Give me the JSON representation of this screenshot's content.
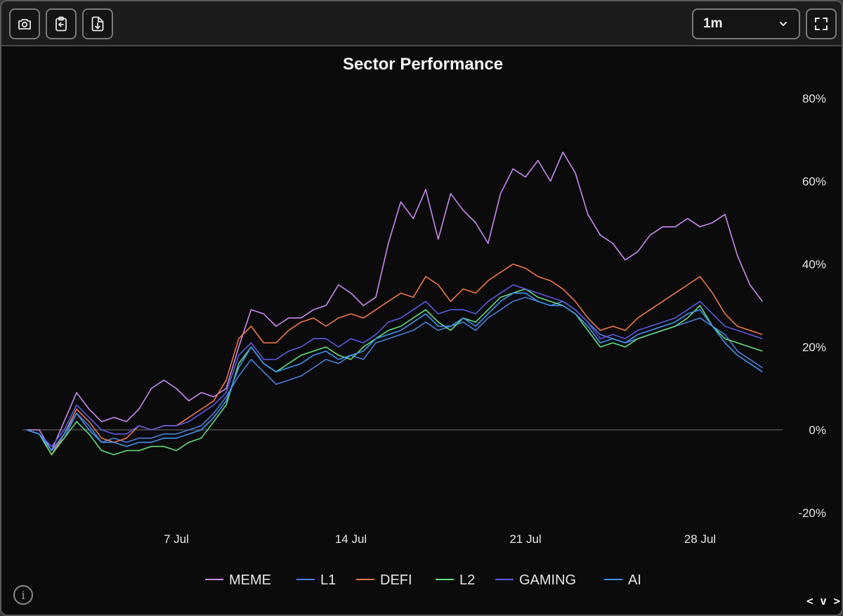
{
  "toolbar": {
    "buttons": [
      {
        "name": "screenshot",
        "icon": "camera-icon"
      },
      {
        "name": "copy",
        "icon": "clipboard-icon"
      },
      {
        "name": "download",
        "icon": "download-icon"
      }
    ],
    "range_select": {
      "value": "1m",
      "icon": "chevron-down-icon"
    },
    "fullscreen_icon": "fullscreen-icon"
  },
  "footer": {
    "info_icon": "info-icon",
    "code_toggle": "< v >"
  },
  "chart_data": {
    "type": "line",
    "title": "Sector Performance",
    "xlabel": "",
    "ylabel": "",
    "ylim": [
      -20,
      80
    ],
    "xlim": [
      1,
      31
    ],
    "y_ticks": [
      "-20%",
      "0%",
      "20%",
      "40%",
      "60%",
      "80%"
    ],
    "y_tick_values": [
      -20,
      0,
      20,
      40,
      60,
      80
    ],
    "x_ticks": [
      "7 Jul",
      "14 Jul",
      "21 Jul",
      "28 Jul"
    ],
    "x_tick_values": [
      7,
      14,
      21,
      28
    ],
    "zero_line": 0,
    "series": [
      {
        "name": "MEME",
        "color": "#c98bf0",
        "x": [
          1.0,
          1.5,
          2.0,
          2.5,
          3.0,
          3.5,
          4.0,
          4.5,
          5.0,
          5.5,
          6.0,
          6.5,
          7.0,
          7.5,
          8.0,
          8.5,
          9.0,
          9.5,
          10.0,
          10.5,
          11.0,
          11.5,
          12.0,
          12.5,
          13.0,
          13.5,
          14.0,
          14.5,
          15.0,
          15.5,
          16.0,
          16.5,
          17.0,
          17.5,
          18.0,
          18.5,
          19.0,
          19.5,
          20.0,
          20.5,
          21.0,
          21.5,
          22.0,
          22.5,
          23.0,
          23.5,
          24.0,
          24.5,
          25.0,
          25.5,
          26.0,
          26.5,
          27.0,
          27.5,
          28.0,
          28.5,
          29.0,
          29.5,
          30.0,
          30.5
        ],
        "y": [
          0,
          0,
          -5,
          2,
          9,
          5,
          2,
          3,
          2,
          5,
          10,
          12,
          10,
          7,
          9,
          8,
          10,
          20,
          29,
          28,
          25,
          27,
          27,
          29,
          30,
          35,
          33,
          30,
          32,
          45,
          55,
          51,
          58,
          46,
          57,
          53,
          50,
          45,
          57,
          63,
          61,
          65,
          60,
          67,
          62,
          52,
          47,
          45,
          41,
          43,
          47,
          49,
          49,
          51,
          49,
          50,
          52,
          42,
          35,
          31
        ]
      },
      {
        "name": "L1",
        "color": "#4a7fd9",
        "x": [
          1.0,
          1.5,
          2.0,
          2.5,
          3.0,
          3.5,
          4.0,
          4.5,
          5.0,
          5.5,
          6.0,
          6.5,
          7.0,
          7.5,
          8.0,
          8.5,
          9.0,
          9.5,
          10.0,
          10.5,
          11.0,
          11.5,
          12.0,
          12.5,
          13.0,
          13.5,
          14.0,
          14.5,
          15.0,
          15.5,
          16.0,
          16.5,
          17.0,
          17.5,
          18.0,
          18.5,
          19.0,
          19.5,
          20.0,
          20.5,
          21.0,
          21.5,
          22.0,
          22.5,
          23.0,
          23.5,
          24.0,
          24.5,
          25.0,
          25.5,
          26.0,
          26.5,
          27.0,
          27.5,
          28.0,
          28.5,
          29.0,
          29.5,
          30.0,
          30.5
        ],
        "y": [
          0,
          -1,
          -5,
          -2,
          4,
          1,
          -3,
          -2,
          -3,
          -2,
          -2,
          -1,
          -1,
          0,
          1,
          4,
          8,
          13,
          17,
          14,
          11,
          12,
          13,
          15,
          17,
          16,
          18,
          17,
          21,
          22,
          23,
          24,
          26,
          24,
          25,
          26,
          24,
          27,
          29,
          31,
          32,
          31,
          30,
          31,
          29,
          26,
          23,
          22,
          21,
          22,
          23,
          24,
          25,
          26,
          27,
          25,
          23,
          19,
          17,
          15
        ]
      },
      {
        "name": "DEFI",
        "color": "#f0764a",
        "x": [
          1.0,
          1.5,
          2.0,
          2.5,
          3.0,
          3.5,
          4.0,
          4.5,
          5.0,
          5.5,
          6.0,
          6.5,
          7.0,
          7.5,
          8.0,
          8.5,
          9.0,
          9.5,
          10.0,
          10.5,
          11.0,
          11.5,
          12.0,
          12.5,
          13.0,
          13.5,
          14.0,
          14.5,
          15.0,
          15.5,
          16.0,
          16.5,
          17.0,
          17.5,
          18.0,
          18.5,
          19.0,
          19.5,
          20.0,
          20.5,
          21.0,
          21.5,
          22.0,
          22.5,
          23.0,
          23.5,
          24.0,
          24.5,
          25.0,
          25.5,
          26.0,
          26.5,
          27.0,
          27.5,
          28.0,
          28.5,
          29.0,
          29.5,
          30.0,
          30.5
        ],
        "y": [
          0,
          -1,
          -6,
          -1,
          5,
          2,
          -2,
          -3,
          -2,
          1,
          0,
          1,
          1,
          3,
          5,
          7,
          12,
          22,
          25,
          21,
          21,
          24,
          26,
          27,
          25,
          27,
          28,
          27,
          29,
          31,
          33,
          32,
          37,
          35,
          31,
          34,
          33,
          36,
          38,
          40,
          39,
          37,
          36,
          34,
          31,
          27,
          24,
          25,
          24,
          27,
          29,
          31,
          33,
          35,
          37,
          33,
          28,
          25,
          24,
          23
        ]
      },
      {
        "name": "L2",
        "color": "#62e07a",
        "x": [
          1.0,
          1.5,
          2.0,
          2.5,
          3.0,
          3.5,
          4.0,
          4.5,
          5.0,
          5.5,
          6.0,
          6.5,
          7.0,
          7.5,
          8.0,
          8.5,
          9.0,
          9.5,
          10.0,
          10.5,
          11.0,
          11.5,
          12.0,
          12.5,
          13.0,
          13.5,
          14.0,
          14.5,
          15.0,
          15.5,
          16.0,
          16.5,
          17.0,
          17.5,
          18.0,
          18.5,
          19.0,
          19.5,
          20.0,
          20.5,
          21.0,
          21.5,
          22.0,
          22.5,
          23.0,
          23.5,
          24.0,
          24.5,
          25.0,
          25.5,
          26.0,
          26.5,
          27.0,
          27.5,
          28.0,
          28.5,
          29.0,
          29.5,
          30.0,
          30.5
        ],
        "y": [
          0,
          -1,
          -6,
          -2,
          2,
          -1,
          -5,
          -6,
          -5,
          -5,
          -4,
          -4,
          -5,
          -3,
          -2,
          2,
          6,
          16,
          20,
          16,
          14,
          16,
          18,
          19,
          20,
          18,
          17,
          20,
          22,
          24,
          25,
          27,
          29,
          26,
          24,
          27,
          26,
          29,
          32,
          33,
          34,
          32,
          31,
          30,
          28,
          24,
          20,
          21,
          20,
          22,
          23,
          24,
          25,
          27,
          30,
          25,
          22,
          21,
          20,
          19
        ]
      },
      {
        "name": "GAMING",
        "color": "#5a5ae0",
        "x": [
          1.0,
          1.5,
          2.0,
          2.5,
          3.0,
          3.5,
          4.0,
          4.5,
          5.0,
          5.5,
          6.0,
          6.5,
          7.0,
          7.5,
          8.0,
          8.5,
          9.0,
          9.5,
          10.0,
          10.5,
          11.0,
          11.5,
          12.0,
          12.5,
          13.0,
          13.5,
          14.0,
          14.5,
          15.0,
          15.5,
          16.0,
          16.5,
          17.0,
          17.5,
          18.0,
          18.5,
          19.0,
          19.5,
          20.0,
          20.5,
          21.0,
          21.5,
          22.0,
          22.5,
          23.0,
          23.5,
          24.0,
          24.5,
          25.0,
          25.5,
          26.0,
          26.5,
          27.0,
          27.5,
          28.0,
          28.5,
          29.0,
          29.5,
          30.0,
          30.5
        ],
        "y": [
          0,
          -1,
          -4,
          0,
          6,
          3,
          0,
          -1,
          -1,
          1,
          0,
          1,
          1,
          2,
          4,
          6,
          9,
          18,
          21,
          17,
          17,
          19,
          20,
          22,
          22,
          20,
          22,
          21,
          23,
          26,
          27,
          29,
          31,
          28,
          29,
          29,
          28,
          31,
          33,
          35,
          34,
          33,
          32,
          31,
          29,
          26,
          22,
          23,
          22,
          24,
          25,
          26,
          27,
          29,
          31,
          28,
          25,
          24,
          23,
          22
        ]
      },
      {
        "name": "AI",
        "color": "#3f94f0",
        "x": [
          1.0,
          1.5,
          2.0,
          2.5,
          3.0,
          3.5,
          4.0,
          4.5,
          5.0,
          5.5,
          6.0,
          6.5,
          7.0,
          7.5,
          8.0,
          8.5,
          9.0,
          9.5,
          10.0,
          10.5,
          11.0,
          11.5,
          12.0,
          12.5,
          13.0,
          13.5,
          14.0,
          14.5,
          15.0,
          15.5,
          16.0,
          16.5,
          17.0,
          17.5,
          18.0,
          18.5,
          19.0,
          19.5,
          20.0,
          20.5,
          21.0,
          21.5,
          22.0,
          22.5,
          23.0,
          23.5,
          24.0,
          24.5,
          25.0,
          25.5,
          26.0,
          26.5,
          27.0,
          27.5,
          28.0,
          28.5,
          29.0,
          29.5,
          30.0,
          30.5
        ],
        "y": [
          0,
          -1,
          -5,
          -1,
          4,
          0,
          -3,
          -3,
          -4,
          -3,
          -3,
          -2,
          -2,
          -1,
          0,
          3,
          7,
          15,
          20,
          16,
          14,
          15,
          16,
          18,
          19,
          17,
          18,
          19,
          22,
          23,
          24,
          26,
          28,
          25,
          25,
          27,
          25,
          28,
          31,
          33,
          33,
          31,
          30,
          30,
          28,
          25,
          21,
          22,
          21,
          23,
          24,
          25,
          26,
          28,
          29,
          25,
          21,
          18,
          16,
          14
        ]
      }
    ]
  }
}
